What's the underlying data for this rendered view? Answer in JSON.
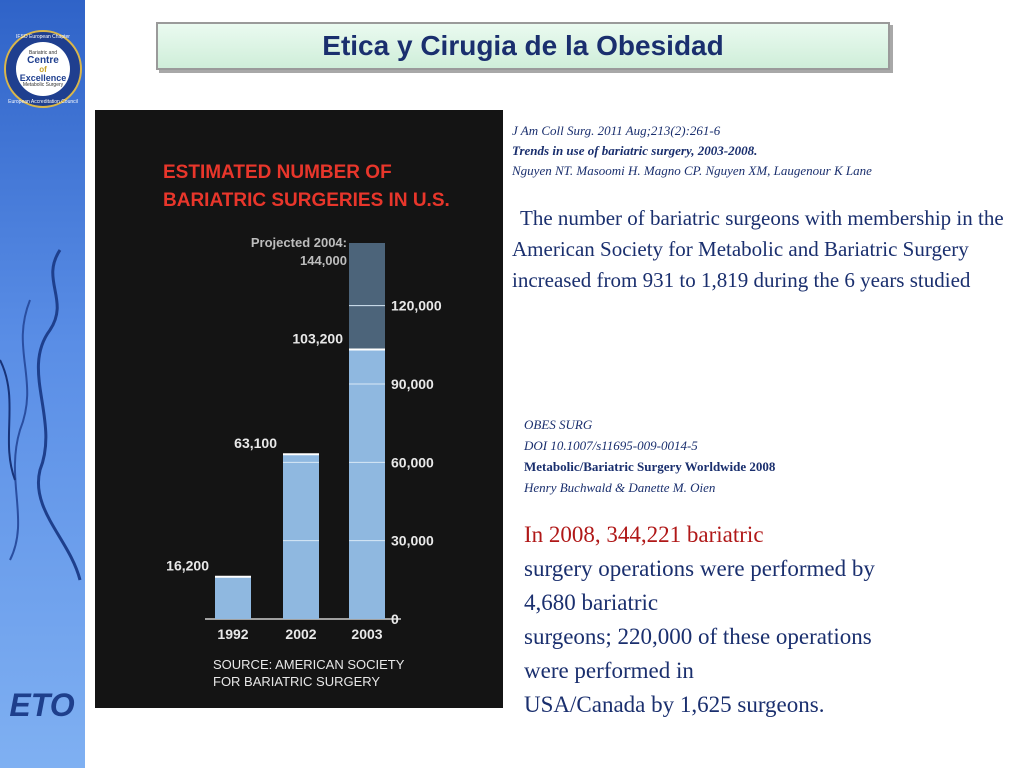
{
  "title": "Etica y Cirugia de la Obesidad",
  "logo": {
    "ring_top": "IFSO European Chapter",
    "ring_bottom": "European Accreditation Council",
    "line1": "Bariatric and",
    "line2": "Centre",
    "line3": "of",
    "line4": "Excellence",
    "line5": "Metabolic Surgery"
  },
  "bottom_logo": "ETO",
  "chart_data": {
    "type": "bar",
    "title": "ESTIMATED NUMBER OF BARIATRIC SURGERIES IN U.S.",
    "categories": [
      "1992",
      "2002",
      "2003"
    ],
    "values": [
      16200,
      63100,
      103200
    ],
    "value_labels": [
      "16,200",
      "63,100",
      "103,200"
    ],
    "projection": {
      "label_line1": "Projected 2004:",
      "label_line2": "144,000",
      "category": "2003",
      "value": 144000
    },
    "y_ticks": [
      0,
      30000,
      60000,
      90000,
      120000
    ],
    "y_tick_labels": [
      "0",
      "30,000",
      "60,000",
      "90,000",
      "120,000"
    ],
    "ylim": [
      0,
      144000
    ],
    "source_line1": "SOURCE: AMERICAN SOCIETY",
    "source_line2": "FOR BARIATRIC SURGERY",
    "colors": {
      "title": "#e8362b",
      "bar": "#8fb8e0",
      "text": "#e8e8e8",
      "background": "#141414"
    }
  },
  "ref1": {
    "line1": "J Am Coll Surg. 2011 Aug;213(2):261-6",
    "line2": "Trends in use of bariatric surgery, 2003-2008.",
    "line3": "Nguyen NT.  Masoomi H. Magno CP. Nguyen XM, Laugenour K  Lane"
  },
  "para1": "The number of bariatric surgeons with membership in the American Society for Metabolic and Bariatric Surgery increased from 931 to 1,819 during the 6 years studied",
  "ref2": {
    "line1": "OBES SURG",
    "line2": "DOI 10.1007/s11695-009-0014-5",
    "line3": "Metabolic/Bariatric Surgery Worldwide 2008",
    "line4": "Henry Buchwald & Danette M. Oien"
  },
  "para2": {
    "line1": "In 2008, 344,221 bariatric",
    "line2": "surgery operations were performed by",
    "line3": "4,680 bariatric",
    "line4": "surgeons; 220,000 of these operations",
    "line5": "were performed in",
    "line6": "USA/Canada by 1,625 surgeons."
  }
}
